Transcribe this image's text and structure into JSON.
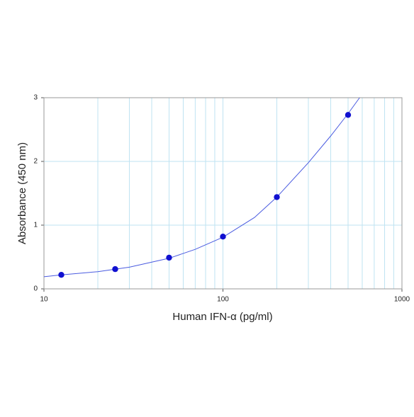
{
  "chart_data": {
    "type": "scatter",
    "xlabel": "Human IFN-α (pg/ml)",
    "ylabel": "Absorbance (450 nm)",
    "xscale": "log",
    "xlim": [
      10,
      1000
    ],
    "ylim": [
      0,
      3
    ],
    "xticks": [
      10,
      100,
      1000
    ],
    "yticks": [
      0,
      1,
      2,
      3
    ],
    "xminorticks": [
      20,
      30,
      40,
      50,
      60,
      70,
      80,
      90,
      200,
      300,
      400,
      500,
      600,
      700,
      800,
      900
    ],
    "grid": true,
    "grid_color": "#bfe3f2",
    "series": [
      {
        "type": "line",
        "color": "#4a5be0",
        "x": [
          10,
          12.5,
          20,
          30,
          50,
          70,
          100,
          150,
          200,
          300,
          400,
          500,
          580
        ],
        "values": [
          0.19,
          0.22,
          0.27,
          0.34,
          0.48,
          0.62,
          0.81,
          1.12,
          1.44,
          1.98,
          2.4,
          2.75,
          3.0
        ]
      },
      {
        "type": "scatter",
        "color": "#1010d0",
        "x": [
          12.5,
          25,
          50,
          100,
          200,
          500
        ],
        "values": [
          0.22,
          0.31,
          0.49,
          0.82,
          1.44,
          2.73
        ]
      }
    ]
  }
}
